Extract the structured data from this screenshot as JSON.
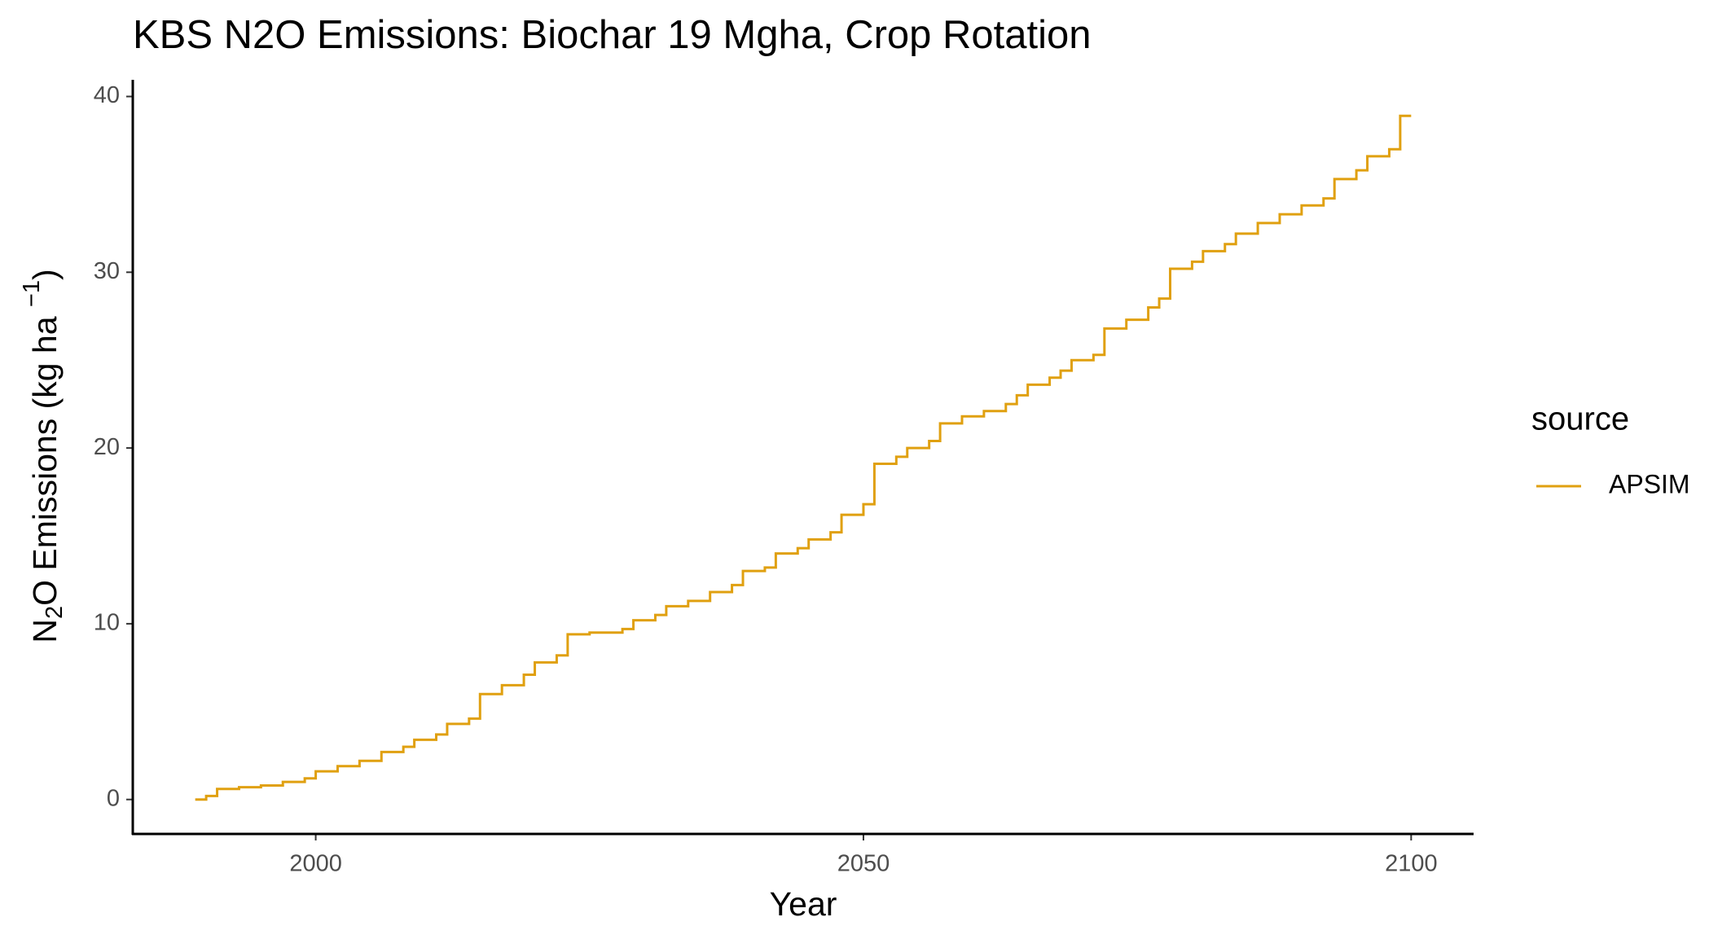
{
  "chart_data": {
    "type": "line",
    "step": true,
    "title": "KBS N2O Emissions:  Biochar 19 Mgha, Crop Rotation",
    "xlabel": "Year",
    "ylabel": [
      "N",
      "2",
      "O Emissions (kg ha ",
      "−1",
      ")"
    ],
    "legend_title": "source",
    "legend": "right",
    "x": [
      1989,
      1990,
      1991,
      1993,
      1995,
      1997,
      1999,
      2000,
      2002,
      2004,
      2006,
      2008,
      2009,
      2011,
      2012,
      2014,
      2015,
      2017,
      2019,
      2020,
      2022,
      2023,
      2025,
      2028,
      2029,
      2031,
      2032,
      2034,
      2036,
      2038,
      2039,
      2041,
      2042,
      2044,
      2045,
      2047,
      2048,
      2050,
      2051,
      2053,
      2054,
      2056,
      2057,
      2059,
      2061,
      2063,
      2064,
      2065,
      2067,
      2068,
      2069,
      2071,
      2072,
      2074,
      2076,
      2077,
      2078,
      2080,
      2081,
      2083,
      2084,
      2086,
      2088,
      2090,
      2092,
      2093,
      2095,
      2096,
      2098,
      2099,
      2100
    ],
    "series": [
      {
        "name": "APSIM",
        "color": "#E0A010",
        "values": [
          0,
          0.2,
          0.6,
          0.7,
          0.8,
          1.0,
          1.2,
          1.6,
          1.9,
          2.2,
          2.7,
          3.0,
          3.4,
          3.7,
          4.3,
          4.6,
          6.0,
          6.5,
          7.1,
          7.8,
          8.2,
          9.4,
          9.5,
          9.7,
          10.2,
          10.5,
          11.0,
          11.3,
          11.8,
          12.2,
          13.0,
          13.2,
          14.0,
          14.3,
          14.8,
          15.2,
          16.2,
          16.8,
          19.1,
          19.5,
          20.0,
          20.4,
          21.4,
          21.8,
          22.1,
          22.5,
          23.0,
          23.6,
          24.0,
          24.4,
          25.0,
          25.3,
          26.8,
          27.3,
          28.0,
          28.5,
          30.2,
          30.6,
          31.2,
          31.6,
          32.2,
          32.8,
          33.3,
          33.8,
          34.2,
          35.3,
          35.8,
          36.6,
          37.0,
          38.9,
          38.9
        ]
      }
    ],
    "xlim": [
      1983.3,
      2105.7
    ],
    "xticks": [
      2000,
      2050,
      2100
    ],
    "ylim": [
      -1.96,
      40.95
    ],
    "yticks": [
      0,
      10,
      20,
      30,
      40
    ],
    "grid": false
  }
}
